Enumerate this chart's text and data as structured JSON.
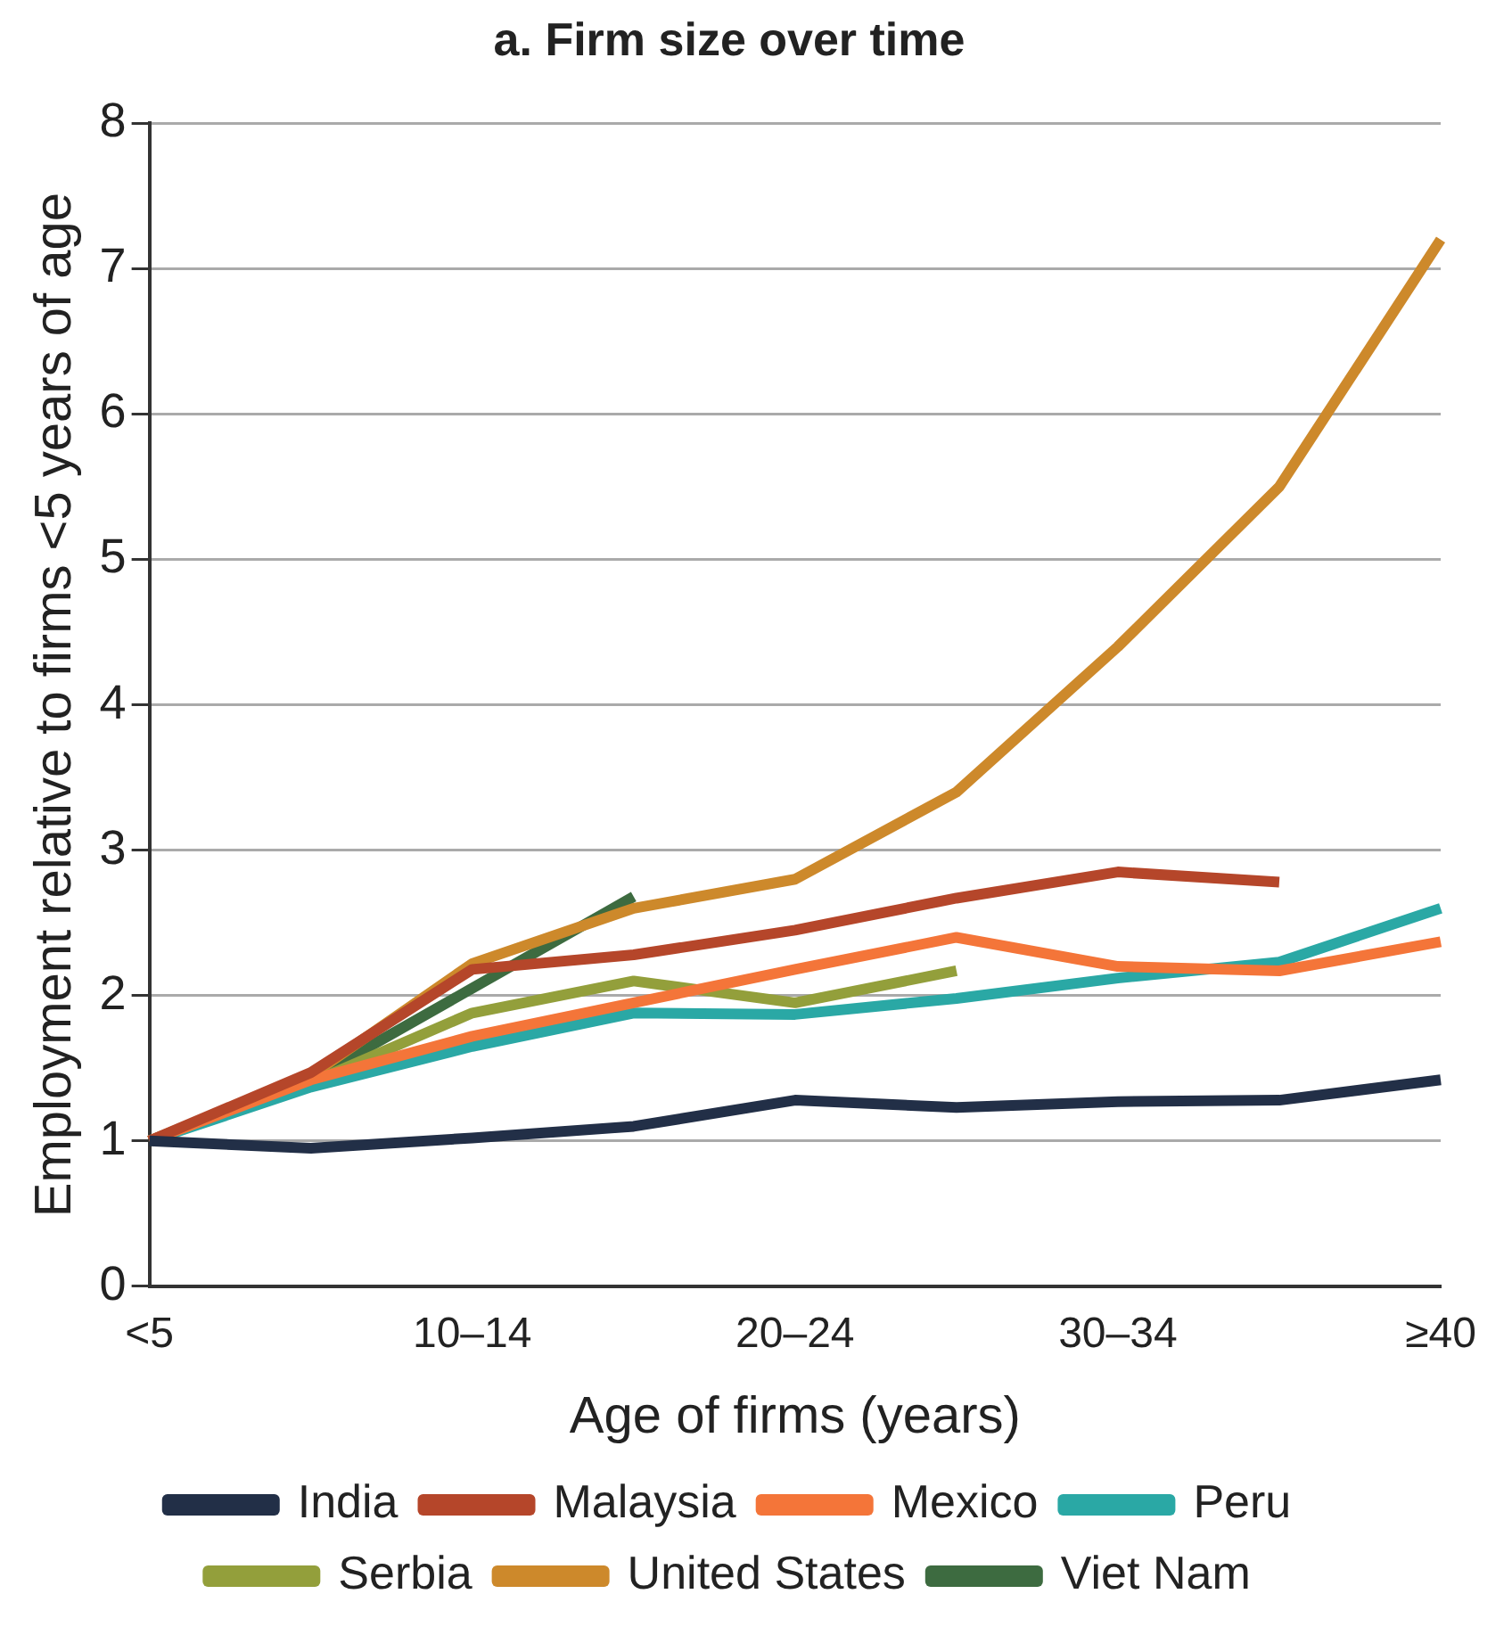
{
  "chart_data": {
    "type": "line",
    "title": "a. Firm size over time",
    "xlabel": "Age of firms (years)",
    "ylabel": "Employment relative to firms <5 years of age",
    "categories": [
      "<5",
      null,
      "10–14",
      null,
      "20–24",
      null,
      "30–34",
      null,
      "≥40"
    ],
    "ylim": [
      0,
      8
    ],
    "yticks": [
      0,
      1,
      2,
      3,
      4,
      5,
      6,
      7,
      8
    ],
    "grid": "y",
    "legend": "bottom",
    "marker": "none",
    "line_style": "solid",
    "series": [
      {
        "name": "India",
        "color": "#222f47",
        "values": [
          1,
          0.95,
          1.02,
          1.1,
          1.28,
          1.23,
          1.27,
          1.28,
          1.42
        ]
      },
      {
        "name": "Malaysia",
        "color": "#b5462a",
        "values": [
          1,
          1.47,
          2.18,
          2.28,
          2.45,
          2.67,
          2.85,
          2.78,
          null
        ]
      },
      {
        "name": "Mexico",
        "color": "#f47539",
        "values": [
          1,
          1.42,
          1.72,
          1.95,
          2.18,
          2.4,
          2.2,
          2.17,
          2.37
        ]
      },
      {
        "name": "Peru",
        "color": "#2aa8a5",
        "values": [
          1,
          1.37,
          1.65,
          1.88,
          1.87,
          1.98,
          2.12,
          2.23,
          2.6
        ]
      },
      {
        "name": "Serbia",
        "color": "#939f3b",
        "values": [
          1,
          1.4,
          1.88,
          2.1,
          1.95,
          2.17,
          null,
          null,
          null
        ]
      },
      {
        "name": "United States",
        "color": "#cd892b",
        "values": [
          1,
          1.45,
          2.22,
          2.6,
          2.8,
          3.4,
          4.4,
          5.5,
          7.2
        ]
      },
      {
        "name": "Viet Nam",
        "color": "#3d6b40",
        "values": [
          1,
          1.42,
          2.05,
          2.68,
          null,
          null,
          null,
          null,
          null
        ]
      }
    ]
  }
}
